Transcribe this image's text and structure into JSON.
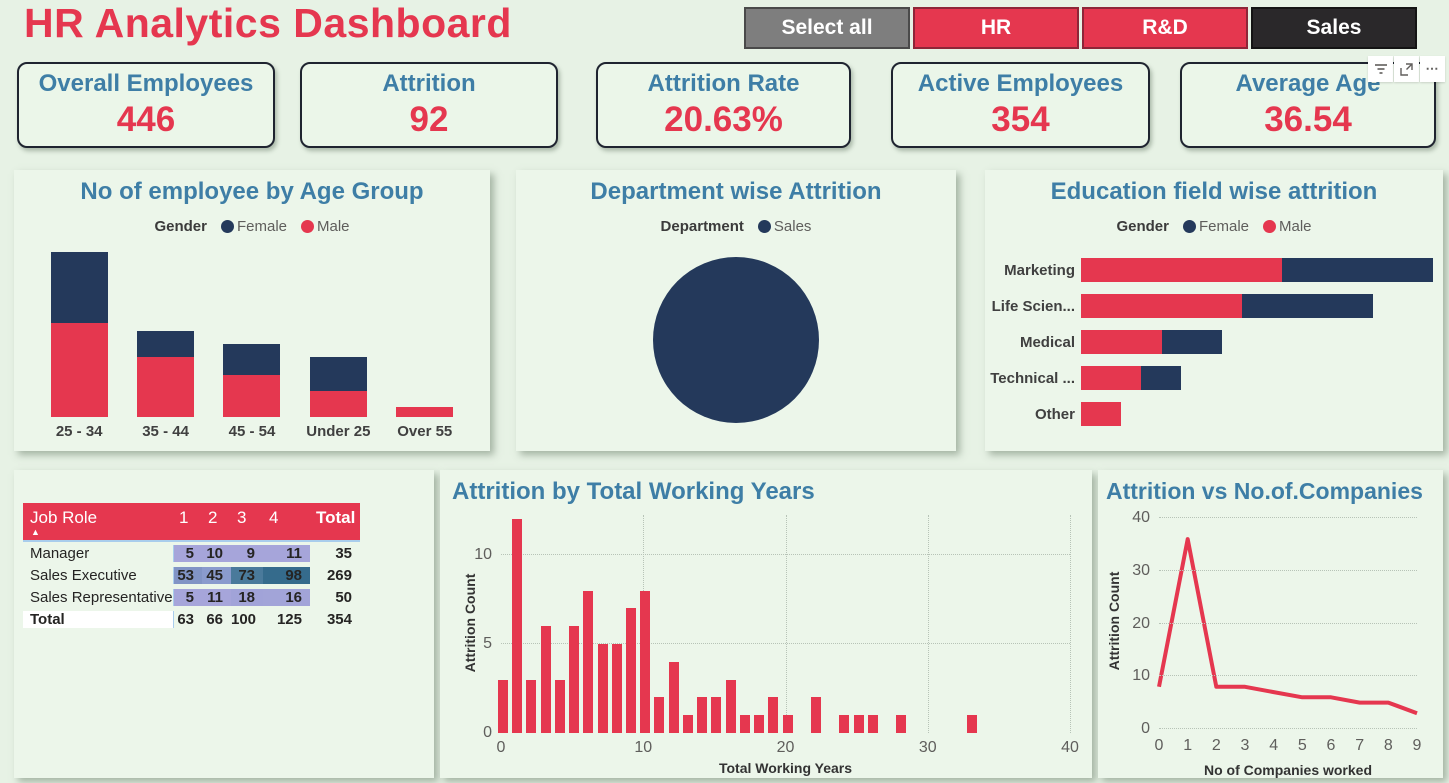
{
  "page": {
    "title": "HR Analytics Dashboard"
  },
  "colors": {
    "accent_red": "#E5374F",
    "navy": "#24395B",
    "title_blue": "#3E7EA6",
    "page_bg": "#E7F2E5",
    "panel_bg": "#ECF6EA",
    "category_text": "#404040",
    "tick_text": "#5F5E5C",
    "table_header_red": "#E5374F"
  },
  "slicer": {
    "buttons": [
      {
        "label": "Select all",
        "bg": "#7E7E7E",
        "border": "#4A4A4A"
      },
      {
        "label": "HR",
        "bg": "#E5374F",
        "border": "#8E2638"
      },
      {
        "label": "R&D",
        "bg": "#E5374F",
        "border": "#8E2638"
      },
      {
        "label": "Sales",
        "bg": "#2A282A",
        "border": "#141414"
      }
    ]
  },
  "hover_toolbar": {
    "icons": [
      "filter-icon",
      "focus-mode-icon",
      "more-options-icon"
    ]
  },
  "kpis": [
    {
      "title": "Overall Employees",
      "value": "446"
    },
    {
      "title": "Attrition",
      "value": "92"
    },
    {
      "title": "Attrition Rate",
      "value": "20.63%"
    },
    {
      "title": "Active Employees",
      "value": "354"
    },
    {
      "title": "Average Age",
      "value": "36.54"
    }
  ],
  "chart_data": [
    {
      "type": "bar",
      "subtype": "stacked-column",
      "title": "No of employee by Age Group",
      "legend": {
        "title": "Gender",
        "position": "top",
        "items": [
          {
            "label": "Female",
            "color": "#24395B"
          },
          {
            "label": "Male",
            "color": "#E5374F"
          }
        ]
      },
      "categories": [
        "25 - 34",
        "35 - 44",
        "45 - 54",
        "Under 25",
        "Over 55"
      ],
      "series": [
        {
          "name": "Male",
          "color": "#E5374F",
          "values": [
            107,
            68,
            48,
            29,
            11
          ]
        },
        {
          "name": "Female",
          "color": "#24395B",
          "values": [
            80,
            29,
            35,
            39,
            0
          ]
        }
      ],
      "grid": false,
      "value_axis_visible": false
    },
    {
      "type": "pie",
      "title": "Department wise Attrition",
      "legend": {
        "title": "Department",
        "position": "top",
        "items": [
          {
            "label": "Sales",
            "color": "#24395B"
          }
        ]
      },
      "slices": [
        {
          "label": "Sales",
          "value": 92,
          "color": "#24395B"
        }
      ]
    },
    {
      "type": "bar",
      "subtype": "stacked-horizontal",
      "title": "Education field wise attrition",
      "legend": {
        "title": "Gender",
        "position": "top",
        "items": [
          {
            "label": "Female",
            "color": "#24395B"
          },
          {
            "label": "Male",
            "color": "#E5374F"
          }
        ]
      },
      "categories": [
        "Marketing",
        "Life Scien...",
        "Medical",
        "Technical ...",
        "Other"
      ],
      "series": [
        {
          "name": "Male",
          "color": "#E5374F",
          "values": [
            20,
            16,
            8,
            6,
            4
          ]
        },
        {
          "name": "Female",
          "color": "#24395B",
          "values": [
            15,
            13,
            6,
            4,
            0
          ]
        }
      ],
      "grid": false,
      "value_axis_visible": false
    },
    {
      "type": "bar",
      "subtype": "column-histogram",
      "title": "Attrition by Total Working Years",
      "xlabel": "Total Working Years",
      "ylabel": "Attrition Count",
      "bar_color": "#E5374F",
      "x": [
        0,
        1,
        2,
        3,
        4,
        5,
        6,
        7,
        8,
        9,
        10,
        11,
        12,
        13,
        14,
        15,
        16,
        17,
        18,
        19,
        20,
        21,
        22,
        23,
        24,
        25,
        26,
        27,
        28,
        29,
        30,
        31,
        32,
        33
      ],
      "values": [
        3,
        12,
        3,
        6,
        3,
        6,
        8,
        5,
        5,
        7,
        8,
        2,
        4,
        1,
        2,
        2,
        3,
        1,
        1,
        2,
        1,
        0,
        2,
        0,
        1,
        1,
        1,
        0,
        1,
        0,
        0,
        0,
        0,
        1
      ],
      "xlim": [
        0,
        40
      ],
      "ylim": [
        0,
        12
      ],
      "xticks": [
        0,
        10,
        20,
        30,
        40
      ],
      "yticks": [
        0,
        5,
        10
      ],
      "grid": true,
      "legend_position": "none"
    },
    {
      "type": "line",
      "title": "Attrition vs No.of.Companies",
      "xlabel": "No of Companies worked",
      "ylabel": "Attrition Count",
      "line_color": "#E5374F",
      "x": [
        0,
        1,
        2,
        3,
        4,
        5,
        6,
        7,
        8,
        9
      ],
      "values": [
        8,
        36,
        8,
        8,
        7,
        6,
        6,
        5,
        5,
        3
      ],
      "xlim": [
        0,
        9
      ],
      "ylim": [
        0,
        40
      ],
      "xticks": [
        0,
        1,
        2,
        3,
        4,
        5,
        6,
        7,
        8,
        9
      ],
      "yticks": [
        0,
        10,
        20,
        30,
        40
      ],
      "grid": true,
      "legend_position": "none"
    },
    {
      "type": "table",
      "title": "Job Role matrix",
      "columns": [
        "Job Role",
        "1",
        "2",
        "3",
        "4",
        "Total"
      ],
      "sort_column": "Job Role",
      "header_bg": "#E5374F",
      "rows": [
        {
          "label": "Manager",
          "values": [
            5,
            10,
            9,
            11
          ],
          "total": 35,
          "cell_colors": [
            "#A6A5DA",
            "#A6A5DA",
            "#A6A5DA",
            "#A6A5DA"
          ]
        },
        {
          "label": "Sales Executive",
          "values": [
            53,
            45,
            73,
            98
          ],
          "total": 269,
          "cell_colors": [
            "#8194C5",
            "#8A9BCD",
            "#4A7A9B",
            "#356B8C"
          ]
        },
        {
          "label": "Sales Representative",
          "values": [
            5,
            11,
            18,
            16
          ],
          "total": 50,
          "cell_colors": [
            "#A6A5DA",
            "#A6A5DA",
            "#A1A3D8",
            "#A2A4D8"
          ]
        }
      ],
      "total_row": {
        "label": "Total",
        "values": [
          63,
          66,
          100,
          125
        ],
        "total": 354
      }
    }
  ]
}
